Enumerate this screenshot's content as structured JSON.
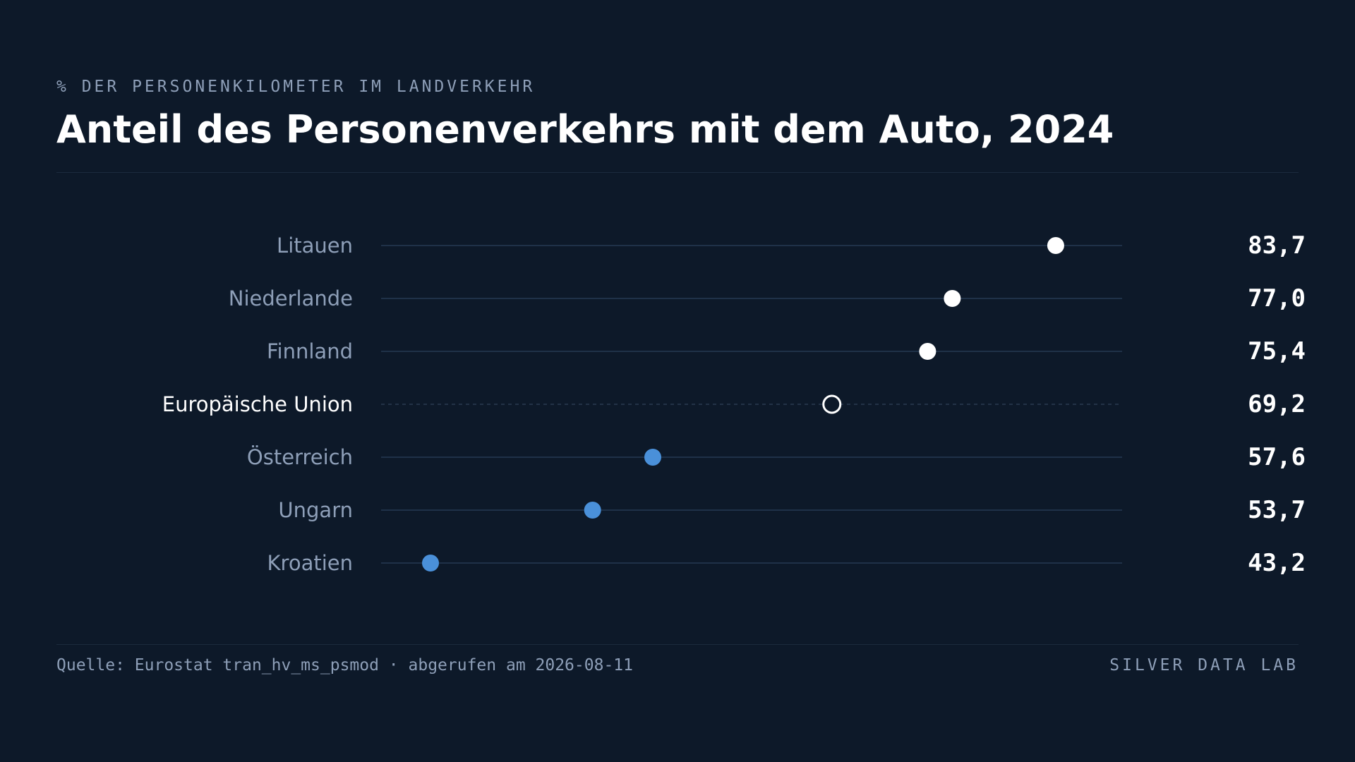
{
  "header": {
    "kicker": "% DER PERSONENKILOMETER IM LANDVERKEHR",
    "title": "Anteil des Personenverkehrs mit dem Auto, 2024"
  },
  "footer": {
    "source": "Quelle: Eurostat tran_hv_ms_psmod · abgerufen am 2026-08-11",
    "brand": "SILVER DATA LAB"
  },
  "colors": {
    "background": "#0d1929",
    "above_average_dot": "#ffffff",
    "below_average_dot": "#4a90d9",
    "reference_dot_outline": "#ffffff",
    "category_label": "#8e9fb8",
    "reference_label": "#ffffff",
    "value_label": "#ffffff",
    "track_line": "#1f3148"
  },
  "chart_data": {
    "type": "scatter",
    "subtype": "dot-plot",
    "title": "Anteil des Personenverkehrs mit dem Auto, 2024",
    "subtitle": "% DER PERSONENKILOMETER IM LANDVERKEHR",
    "xlim": [
      40,
      88
    ],
    "grid": false,
    "categories": [
      "Litauen",
      "Niederlande",
      "Finnland",
      "Europäische Union",
      "Österreich",
      "Ungarn",
      "Kroatien"
    ],
    "values": [
      83.7,
      77.0,
      75.4,
      69.2,
      57.6,
      53.7,
      43.2
    ],
    "value_labels": [
      "83,7",
      "77,0",
      "75,4",
      "69,2",
      "57,6",
      "53,7",
      "43,2"
    ],
    "reference_category": "Europäische Union"
  }
}
